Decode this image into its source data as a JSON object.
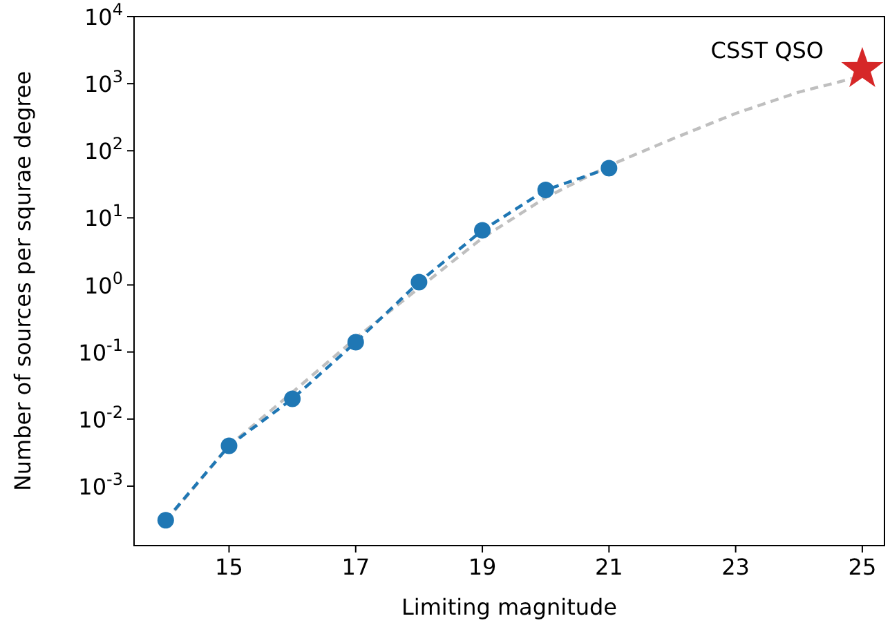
{
  "chart_data": {
    "type": "line",
    "xlabel": "Limiting magnitude",
    "ylabel": "Number of sources per squrae degree",
    "log": "y",
    "grid": false,
    "xlim": [
      13.5,
      25.35
    ],
    "xticks": [
      15,
      17,
      19,
      21,
      23,
      25
    ],
    "ylim": [
      0.00013,
      10000
    ],
    "yticks": [
      {
        "value": 0.001,
        "label": "10$^{-3}$"
      },
      {
        "value": 0.01,
        "label": "10$^{-2}$"
      },
      {
        "value": 0.1,
        "label": "10$^{-1}$"
      },
      {
        "value": 1,
        "label": "10$^{0}$"
      },
      {
        "value": 10,
        "label": "10$^{1}$"
      },
      {
        "value": 100,
        "label": "10$^{2}$"
      },
      {
        "value": 1000,
        "label": "10$^{3}$"
      },
      {
        "value": 10000,
        "label": "10$^{4}$"
      }
    ],
    "series": [
      {
        "color": "#bfbfbf",
        "line_style": "dashed",
        "marker": "none",
        "x": [
          14,
          15,
          16,
          17,
          18,
          19,
          20,
          21,
          22,
          23,
          24,
          25
        ],
        "values": [
          0.0003,
          0.004,
          0.025,
          0.16,
          0.9,
          5,
          20,
          60,
          150,
          360,
          750,
          1300
        ]
      },
      {
        "color": "#1f77b4",
        "line_style": "dashed",
        "marker": "circle",
        "x": [
          14,
          15,
          16,
          17,
          18,
          19,
          20,
          21
        ],
        "values": [
          0.00031,
          0.004,
          0.02,
          0.14,
          1.1,
          6.5,
          26,
          55
        ]
      },
      {
        "type": "scatter",
        "color": "#d62728",
        "marker": "star",
        "x": [
          25
        ],
        "values": [
          1650
        ]
      }
    ],
    "annotations": [
      {
        "text": "CSST QSO",
        "x": 25,
        "y": 1650
      }
    ]
  }
}
